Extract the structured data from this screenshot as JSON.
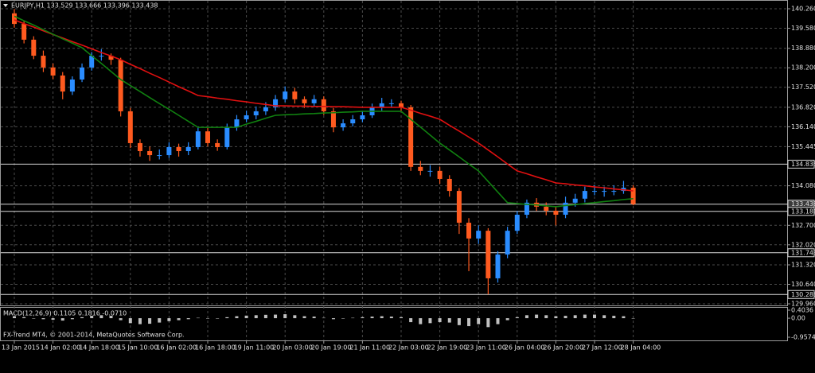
{
  "chart_data": {
    "type": "candlestick",
    "title": "EURJPY,H1 133.529 133.666 133.396 133.438",
    "footer": "FX-Trend MT4, © 2001-2014, MetaQuotes Software Corp.",
    "categories": [
      "13 Jan 2015",
      null,
      null,
      null,
      "14 Jan 02:00",
      null,
      null,
      null,
      "14 Jan 18:00",
      null,
      null,
      null,
      "15 Jan 10:00",
      null,
      null,
      null,
      "16 Jan 02:00",
      null,
      null,
      null,
      "16 Jan 18:00",
      null,
      null,
      null,
      "19 Jan 11:00",
      null,
      null,
      null,
      "20 Jan 03:00",
      null,
      null,
      null,
      "20 Jan 19:00",
      null,
      null,
      null,
      "21 Jan 11:00",
      null,
      null,
      null,
      "22 Jan 03:00",
      null,
      null,
      null,
      "22 Jan 19:00",
      null,
      null,
      null,
      "23 Jan 11:00",
      null,
      null,
      null,
      "26 Jan 04:00",
      null,
      null,
      null,
      "26 Jan 20:00",
      null,
      null,
      null,
      "27 Jan 12:00",
      null,
      null,
      null,
      "28 Jan 04:00"
    ],
    "open": [
      140.1,
      139.73,
      139.18,
      138.62,
      138.21,
      137.93,
      137.37,
      137.79,
      138.21,
      138.62,
      138.62,
      138.48,
      136.68,
      135.57,
      135.29,
      135.15,
      135.15,
      135.43,
      135.29,
      135.43,
      135.98,
      135.57,
      135.43,
      136.12,
      136.4,
      136.54,
      136.68,
      136.82,
      137.1,
      137.37,
      137.1,
      136.96,
      137.1,
      136.68,
      136.12,
      136.26,
      136.4,
      136.54,
      136.82,
      136.96,
      136.96,
      136.82,
      134.74,
      134.6,
      134.6,
      134.32,
      133.9,
      132.79,
      132.24,
      132.51,
      130.85,
      131.68,
      132.51,
      133.07,
      133.49,
      133.35,
      133.21,
      133.07,
      133.49,
      133.63,
      133.9,
      133.9,
      133.9,
      133.9,
      134.01
    ],
    "high": [
      140.25,
      139.85,
      139.3,
      138.8,
      138.35,
      138.05,
      137.9,
      138.35,
      138.75,
      138.85,
      138.7,
      138.55,
      136.8,
      135.7,
      135.45,
      135.35,
      135.6,
      135.55,
      135.6,
      136.15,
      136.1,
      135.7,
      136.25,
      136.55,
      136.7,
      136.85,
      137.0,
      137.25,
      137.55,
      137.5,
      137.2,
      137.25,
      137.2,
      136.8,
      136.4,
      136.55,
      136.7,
      136.95,
      137.15,
      137.1,
      137.05,
      136.9,
      134.95,
      134.8,
      134.75,
      134.45,
      134.0,
      132.95,
      132.7,
      132.6,
      131.8,
      132.65,
      133.2,
      133.6,
      133.65,
      133.5,
      133.35,
      133.7,
      133.8,
      134.05,
      134.1,
      134.05,
      134.1,
      134.25,
      134.1
    ],
    "low": [
      139.6,
      139.05,
      138.5,
      138.05,
      137.8,
      137.1,
      137.25,
      137.7,
      138.1,
      138.45,
      138.3,
      136.5,
      135.4,
      135.1,
      134.95,
      135.0,
      135.05,
      135.1,
      135.15,
      135.35,
      135.45,
      135.3,
      135.35,
      136.0,
      136.3,
      136.4,
      136.55,
      136.7,
      137.0,
      136.95,
      136.8,
      136.85,
      136.55,
      135.95,
      136.0,
      136.15,
      136.3,
      136.45,
      136.7,
      136.8,
      136.65,
      134.6,
      134.45,
      134.4,
      134.15,
      133.7,
      132.4,
      131.1,
      132.05,
      130.29,
      130.7,
      131.55,
      132.4,
      132.95,
      133.2,
      133.05,
      132.7,
      132.95,
      133.35,
      133.5,
      133.75,
      133.7,
      133.75,
      133.8,
      133.4
    ],
    "close": [
      139.73,
      139.18,
      138.62,
      138.21,
      137.93,
      137.37,
      137.79,
      138.21,
      138.62,
      138.62,
      138.48,
      136.68,
      135.57,
      135.29,
      135.15,
      135.15,
      135.43,
      135.29,
      135.43,
      135.98,
      135.57,
      135.43,
      136.12,
      136.4,
      136.54,
      136.68,
      136.82,
      137.1,
      137.37,
      137.1,
      136.96,
      137.1,
      136.68,
      136.12,
      136.26,
      136.4,
      136.54,
      136.82,
      136.96,
      136.96,
      136.82,
      134.74,
      134.6,
      134.6,
      134.32,
      133.9,
      132.79,
      132.24,
      132.51,
      130.85,
      131.68,
      132.51,
      133.07,
      133.49,
      133.35,
      133.21,
      133.07,
      133.49,
      133.63,
      133.9,
      133.9,
      133.9,
      133.9,
      134.01,
      133.44
    ],
    "up_color": "#2a8cff",
    "down_color": "#ff5a1f",
    "series": [
      {
        "color": "#e01010",
        "values": [
          139.87,
          139.74,
          139.62,
          139.49,
          139.36,
          139.24,
          139.11,
          138.99,
          138.86,
          138.73,
          138.61,
          138.48,
          138.32,
          138.17,
          138.01,
          137.86,
          137.7,
          137.54,
          137.39,
          137.23,
          137.19,
          137.14,
          137.1,
          137.05,
          137.01,
          136.96,
          136.92,
          136.87,
          136.87,
          136.86,
          136.86,
          136.85,
          136.85,
          136.84,
          136.84,
          136.83,
          136.82,
          136.82,
          136.82,
          136.82,
          136.82,
          136.72,
          136.61,
          136.51,
          136.4,
          136.19,
          135.99,
          135.78,
          135.57,
          135.33,
          135.09,
          134.84,
          134.6,
          134.5,
          134.39,
          134.29,
          134.18,
          134.15,
          134.11,
          134.08,
          134.04,
          134.01,
          133.97,
          133.94,
          133.9
        ]
      },
      {
        "color": "#108010",
        "values": [
          140.0,
          139.84,
          139.69,
          139.53,
          139.37,
          139.21,
          139.06,
          138.9,
          138.62,
          138.35,
          138.07,
          137.79,
          137.58,
          137.37,
          137.16,
          136.95,
          136.75,
          136.54,
          136.33,
          136.12,
          136.12,
          136.12,
          136.12,
          136.12,
          136.23,
          136.33,
          136.44,
          136.54,
          136.56,
          136.57,
          136.59,
          136.6,
          136.62,
          136.63,
          136.65,
          136.66,
          136.68,
          136.68,
          136.68,
          136.68,
          136.68,
          136.4,
          136.13,
          135.85,
          135.57,
          135.33,
          135.09,
          134.84,
          134.6,
          134.23,
          133.86,
          133.49,
          133.46,
          133.43,
          133.41,
          133.38,
          133.35,
          133.39,
          133.42,
          133.46,
          133.49,
          133.53,
          133.56,
          133.6,
          133.63
        ]
      }
    ],
    "ylim": [
      129.96,
      140.26
    ],
    "yticks": [
      {
        "value": 140.26,
        "label": "140.260"
      },
      {
        "value": 139.58,
        "label": "139.580"
      },
      {
        "value": 138.88,
        "label": "138.880"
      },
      {
        "value": 138.2,
        "label": "138.200"
      },
      {
        "value": 137.52,
        "label": "137.520"
      },
      {
        "value": 136.82,
        "label": "136.820"
      },
      {
        "value": 136.14,
        "label": "136.140"
      },
      135.445,
      {
        "value": 134.08,
        "label": "134.080"
      },
      {
        "value": 132.7,
        "label": "132.700"
      },
      {
        "value": 132.02,
        "label": "132.020"
      },
      {
        "value": 131.32,
        "label": "131.320"
      },
      {
        "value": 130.64,
        "label": "130.640"
      },
      {
        "value": 129.96,
        "label": "129.960"
      }
    ],
    "levels": [
      134.835,
      133.438,
      133.186,
      131.743,
      130.286
    ],
    "grid": true,
    "macd": {
      "title": "MACD(12,26,9) 0.1105 0.1816 -0.0710",
      "color": "#c0c0c0",
      "values": [
        0.1,
        0.05,
        0.0,
        -0.05,
        -0.08,
        -0.12,
        -0.05,
        0.05,
        0.12,
        0.15,
        0.12,
        -0.1,
        -0.25,
        -0.3,
        -0.28,
        -0.22,
        -0.15,
        -0.1,
        -0.05,
        0.02,
        0.0,
        -0.02,
        0.05,
        0.1,
        0.13,
        0.15,
        0.17,
        0.18,
        0.2,
        0.15,
        0.1,
        0.08,
        0.02,
        -0.05,
        -0.02,
        0.02,
        0.05,
        0.08,
        0.1,
        0.08,
        0.05,
        -0.2,
        -0.3,
        -0.25,
        -0.2,
        -0.22,
        -0.35,
        -0.4,
        -0.3,
        -0.45,
        -0.3,
        -0.1,
        0.05,
        0.15,
        0.18,
        0.15,
        0.1,
        0.12,
        0.15,
        0.18,
        0.18,
        0.15,
        0.12,
        0.1,
        -0.02
      ],
      "ylim": [
        -0.9574,
        0.4036
      ],
      "yticks": [
        0.4036,
        {
          "value": 0,
          "label": "0.00"
        },
        -0.9574
      ]
    }
  }
}
